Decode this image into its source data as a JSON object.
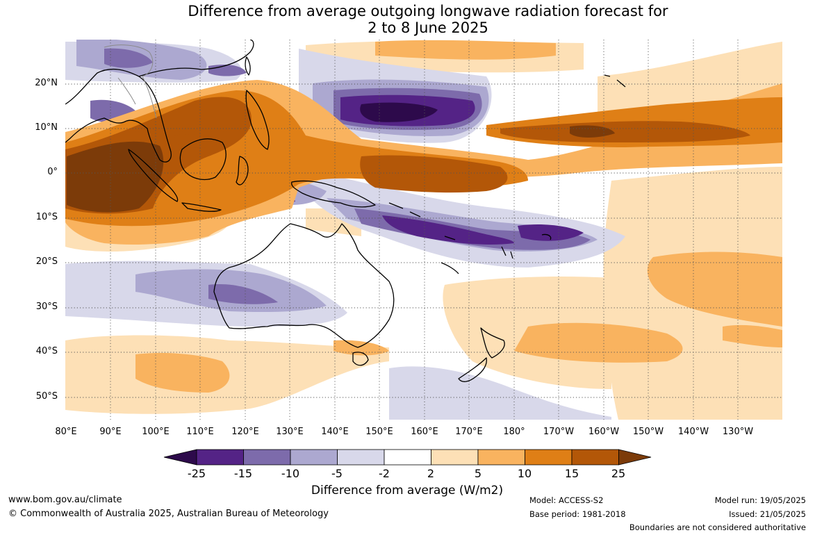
{
  "title_line1": "Difference from average outgoing longwave radiation forecast for",
  "title_line2": "2 to 8 June 2025",
  "map": {
    "lat_ticks": [
      "20°N",
      "10°N",
      "0°",
      "10°S",
      "20°S",
      "30°S",
      "40°S",
      "50°S"
    ],
    "lon_ticks": [
      "80°E",
      "90°E",
      "100°E",
      "110°E",
      "120°E",
      "130°E",
      "140°E",
      "150°E",
      "160°E",
      "170°E",
      "180°",
      "170°W",
      "160°W",
      "150°W",
      "140°W",
      "130°W"
    ],
    "gridlines": "dotted"
  },
  "colorbar": {
    "title": "Difference from average (W/m2)",
    "tick_labels": [
      "-25",
      "-15",
      "-10",
      "-5",
      "-2",
      "2",
      "5",
      "10",
      "15",
      "25"
    ],
    "colors": {
      "lt_minus25": "#2d0a4b",
      "minus25_minus15": "#542386",
      "minus15_minus10": "#7d6bab",
      "minus10_minus5": "#aca8d0",
      "minus5_minus2": "#d8d8ea",
      "minus2_2": "#ffffff",
      "p2_5": "#fde0b6",
      "p5_10": "#f9b35f",
      "p10_15": "#df7f16",
      "p15_25": "#b35708",
      "gt25": "#7c3b09"
    }
  },
  "footer": {
    "website": "www.bom.gov.au/climate",
    "copyright": "© Commonwealth of Australia 2025, Australian Bureau of Meteorology",
    "model": "Model: ACCESS-S2",
    "base_period": "Base period: 1981-2018",
    "model_run": "Model run: 19/05/2025",
    "issued": "Issued: 21/05/2025",
    "disclaimer": "Boundaries are not considered authoritative"
  }
}
